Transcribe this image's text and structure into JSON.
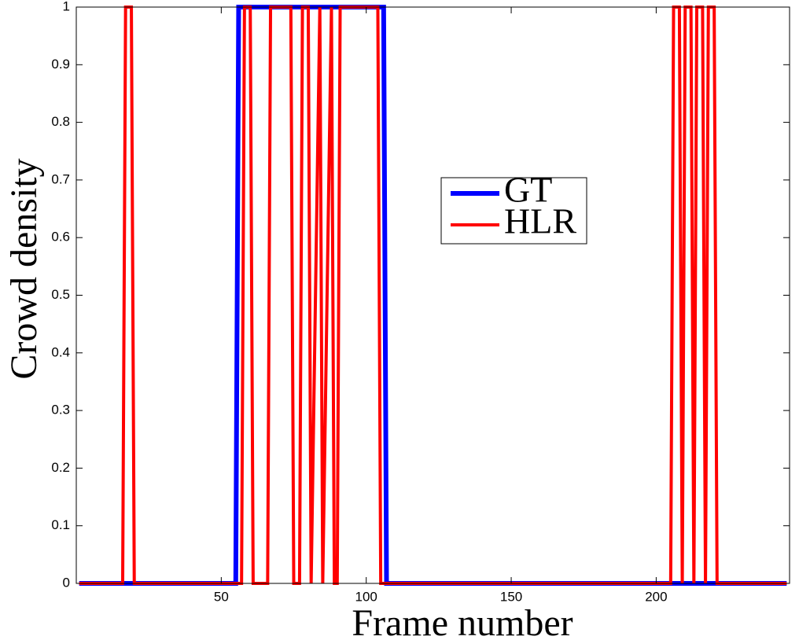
{
  "chart_data": {
    "type": "line",
    "xlabel": "Frame number",
    "ylabel": "Crowd density",
    "xlim": [
      0,
      246
    ],
    "ylim": [
      0,
      1
    ],
    "xticks": [
      50,
      100,
      150,
      200
    ],
    "yticks": [
      0,
      0.1,
      0.2,
      0.3,
      0.4,
      0.5,
      0.6,
      0.7,
      0.8,
      0.9,
      1
    ],
    "legend_position": "center",
    "series": [
      {
        "name": "GT",
        "color": "#0000ff",
        "x": [
          1,
          55,
          56,
          106,
          107,
          245
        ],
        "values": [
          0,
          0,
          1,
          1,
          0,
          0
        ]
      },
      {
        "name": "HLR",
        "color": "#ff0000",
        "x": [
          1,
          16,
          17,
          19,
          20,
          57,
          58,
          60,
          61,
          66,
          67,
          74,
          75,
          77,
          78,
          80,
          81,
          84,
          85,
          88,
          89,
          90,
          91,
          104,
          105,
          205,
          206,
          208,
          209,
          210,
          212,
          213,
          214,
          216,
          217,
          218,
          220,
          221,
          245
        ],
        "values": [
          0,
          0,
          1,
          1,
          0,
          0,
          1,
          1,
          0,
          0,
          1,
          1,
          0,
          0,
          1,
          1,
          0,
          1,
          0,
          1,
          0,
          0,
          1,
          1,
          0,
          0,
          1,
          1,
          0,
          1,
          1,
          0,
          1,
          1,
          0,
          1,
          1,
          0,
          0
        ]
      }
    ]
  }
}
